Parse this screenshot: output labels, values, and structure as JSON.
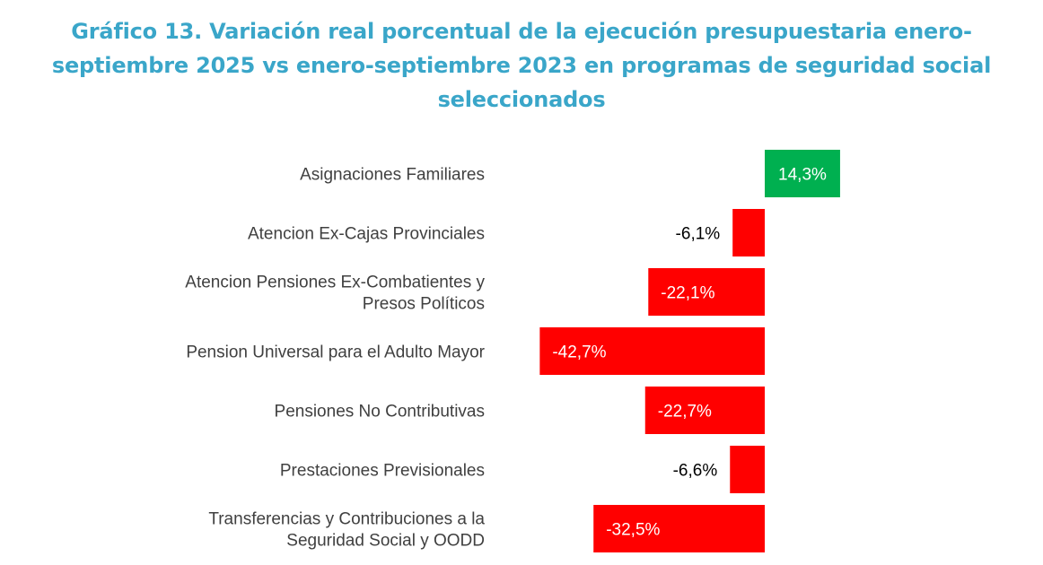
{
  "title": "Gráfico 13. Variación real porcentual de la ejecución presupuestaria enero-septiembre 2025 vs enero-septiembre 2023 en programas de seguridad social seleccionados",
  "colors": {
    "positive": "#00b050",
    "negative": "#ff0000",
    "title": "#3aa6c9",
    "category_text": "#404040"
  },
  "chart_data": {
    "type": "bar",
    "orientation": "horizontal",
    "title": "Gráfico 13. Variación real porcentual de la ejecución presupuestaria enero-septiembre 2025 vs enero-septiembre 2023 en programas de seguridad social seleccionados",
    "unit": "%",
    "categories": [
      [
        "Asignaciones Familiares"
      ],
      [
        "Atencion Ex-Cajas Provinciales"
      ],
      [
        "Atencion Pensiones Ex-Combatientes y",
        "Presos Políticos"
      ],
      [
        "Pension Universal para el Adulto Mayor"
      ],
      [
        "Pensiones No Contributivas"
      ],
      [
        "Prestaciones Previsionales"
      ],
      [
        "Transferencias y Contribuciones a la",
        "Seguridad Social y OODD"
      ]
    ],
    "values": [
      14.3,
      -6.1,
      -22.1,
      -42.7,
      -22.7,
      -6.6,
      -32.5
    ],
    "data_labels": [
      "14,3%",
      "-6,1%",
      "-22,1%",
      "-42,7%",
      "-22,7%",
      "-6,6%",
      "-32,5%"
    ],
    "xlim": [
      -42.7,
      14.3
    ],
    "grid": false,
    "legend": "none"
  }
}
